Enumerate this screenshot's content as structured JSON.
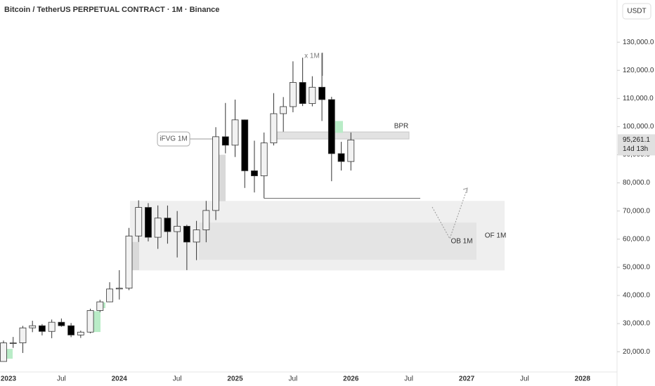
{
  "chart_data": {
    "type": "candlestick",
    "title": "Bitcoin / TetherUS PERPETUAL CONTRACT · 1M · Binance",
    "currency": "USDT",
    "categories": [
      "2023",
      null,
      null,
      null,
      null,
      null,
      "Jul",
      null,
      null,
      null,
      null,
      null,
      "2024",
      null,
      null,
      null,
      null,
      null,
      "Jul",
      null,
      null,
      null,
      null,
      null,
      "2025",
      null,
      null,
      null,
      null,
      null,
      "Jul",
      null,
      null,
      null,
      null,
      null,
      "2026",
      null,
      null,
      null,
      null,
      null,
      "Jul",
      null,
      null,
      null,
      null,
      null,
      "2027",
      null,
      null,
      null,
      null,
      null,
      "Jul",
      null,
      null,
      null,
      null,
      null,
      "2028"
    ],
    "open": [
      16530,
      23130,
      23140,
      28470,
      29230,
      27210,
      30470,
      29230,
      25940,
      26960,
      34640,
      37720,
      42280,
      42580,
      61130,
      71280,
      60670,
      67490,
      62680,
      64600,
      58970,
      63300,
      70200,
      96400,
      93400,
      102400,
      84300,
      82500,
      94200,
      104600,
      107100,
      115700,
      108200,
      114000,
      109600,
      90400,
      87600,
      null,
      null,
      null,
      null,
      null,
      null,
      null,
      null,
      null,
      null,
      null,
      null,
      null,
      null,
      null,
      null,
      null,
      null,
      null,
      null,
      null,
      null,
      null,
      null
    ],
    "high": [
      23960,
      25250,
      29180,
      31000,
      29820,
      31430,
      31800,
      30200,
      27480,
      35280,
      38450,
      44700,
      48970,
      64000,
      73800,
      72800,
      71980,
      71950,
      70000,
      65100,
      66500,
      73600,
      99800,
      108400,
      109600,
      102500,
      95000,
      97900,
      111900,
      110500,
      123200,
      124500,
      117900,
      126200,
      110600,
      94600,
      97900,
      null,
      null,
      null,
      null,
      null,
      null,
      null,
      null,
      null,
      null,
      null,
      null,
      null,
      null,
      null,
      null,
      null,
      null,
      null,
      null,
      null,
      null,
      null,
      null
    ],
    "low": [
      16500,
      21350,
      19550,
      26940,
      25800,
      24800,
      28860,
      25170,
      24900,
      26540,
      34100,
      37600,
      38550,
      41880,
      59000,
      59200,
      56550,
      58400,
      53500,
      49000,
      52550,
      58900,
      66800,
      90500,
      89200,
      78200,
      76600,
      74500,
      93300,
      98200,
      105100,
      107300,
      107200,
      102000,
      80600,
      84400,
      84400,
      null,
      null,
      null,
      null,
      null,
      null,
      null,
      null,
      null,
      null,
      null,
      null,
      null,
      null,
      null,
      null,
      null,
      null,
      null,
      null,
      null,
      null,
      null,
      null
    ],
    "close": [
      23130,
      23140,
      28470,
      29230,
      27210,
      30470,
      29230,
      25940,
      26960,
      34640,
      37720,
      42280,
      42580,
      61130,
      71280,
      60670,
      67490,
      62680,
      64600,
      58970,
      63300,
      70200,
      96400,
      93400,
      102400,
      84300,
      82500,
      94200,
      104600,
      107100,
      115700,
      108200,
      114000,
      109600,
      90400,
      87600,
      95261.1,
      null,
      null,
      null,
      null,
      null,
      null,
      null,
      null,
      null,
      null,
      null,
      null,
      null,
      null,
      null,
      null,
      null,
      null,
      null,
      null,
      null,
      null,
      null,
      null
    ],
    "up_color": "#f2f2f2",
    "down_color": "#000000",
    "ylim": [
      12800,
      145000
    ],
    "yticks": [
      {
        "value": 20000,
        "label": "20,000.0"
      },
      {
        "value": 30000,
        "label": "30,000.0"
      },
      {
        "value": 40000,
        "label": "40,000.0"
      },
      {
        "value": 50000,
        "label": "50,000.0"
      },
      {
        "value": 60000,
        "label": "60,000.0"
      },
      {
        "value": 70000,
        "label": "70,000.0"
      },
      {
        "value": 80000,
        "label": "80,000.0"
      },
      {
        "value": 90000,
        "label": "90,000.0"
      },
      {
        "value": 100000,
        "label": "100,000.0"
      },
      {
        "value": 110000,
        "label": "110,000.0"
      },
      {
        "value": 120000,
        "label": "120,000.0"
      },
      {
        "value": 130000,
        "label": "130,000.0"
      }
    ],
    "last_price": {
      "value": 95261.1,
      "label": "95,261.1"
    },
    "countdown": "14d 13h",
    "zones": [
      {
        "label": "OF 1M",
        "top": 73600,
        "bottom": 48900,
        "color": "#efefef"
      },
      {
        "label": "OB 1M",
        "top": 65900,
        "bottom": 52700,
        "color": "#e4e4e4"
      },
      {
        "label": "BPR",
        "top": 98100,
        "bottom": 95600,
        "color": "#e2e2e2"
      }
    ],
    "gaps": [
      {
        "top": 21000,
        "bottom": 17500,
        "color": "#b9ecc7"
      },
      {
        "top": 34400,
        "bottom": 27000,
        "color": "#b9ecc7"
      },
      {
        "top": 37500,
        "bottom": 35500,
        "color": "#b9ecc7"
      },
      {
        "top": 59000,
        "bottom": 49000,
        "color": "#d9d9d9"
      },
      {
        "top": 90000,
        "bottom": 73500,
        "color": "#d9d9d9"
      },
      {
        "top": 102000,
        "bottom": 97800,
        "color": "#b9ecc7"
      }
    ],
    "ifvg": {
      "label": "iFVG 1M",
      "level": 95600
    },
    "support": 74500,
    "note": "x 1M"
  }
}
